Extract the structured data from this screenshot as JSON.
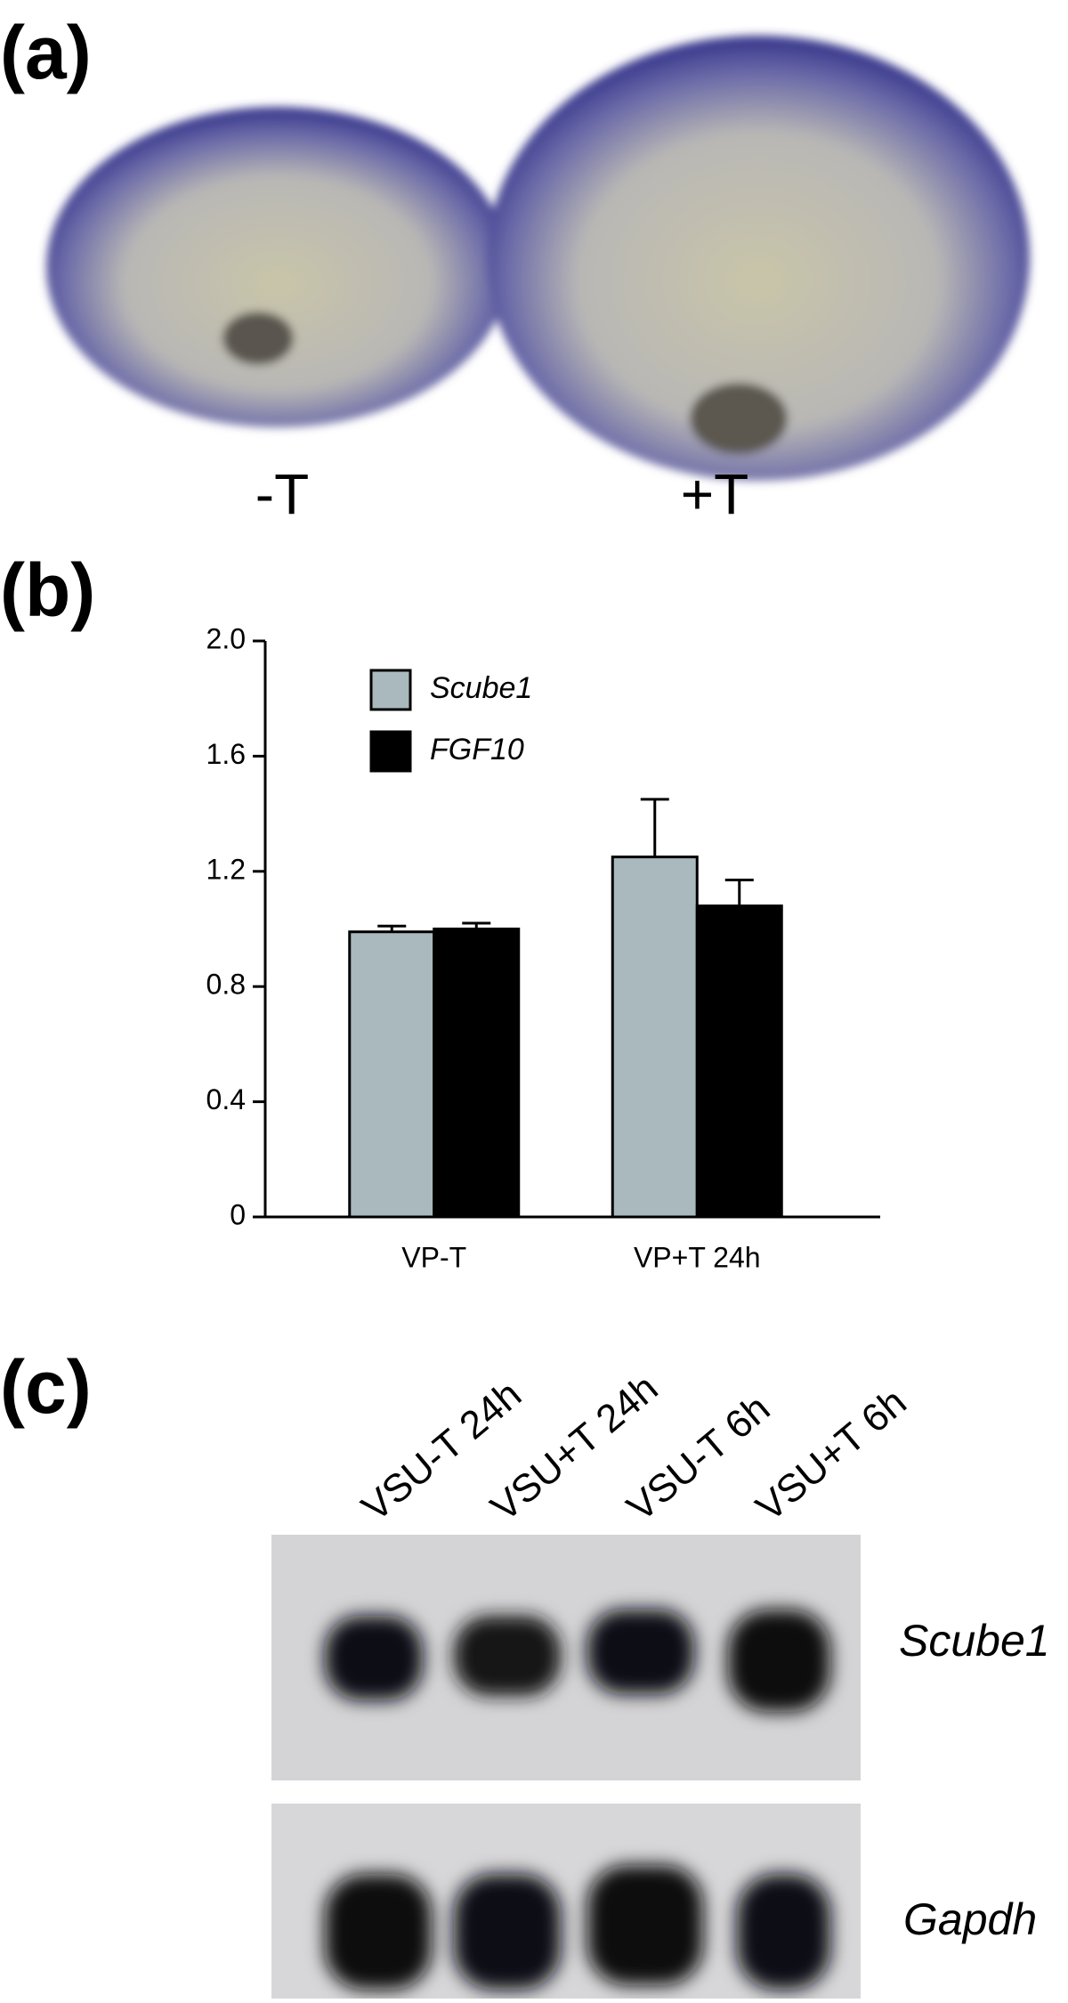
{
  "panel_labels": [
    "(a)",
    "(b)",
    "(c)"
  ],
  "panel_a": {
    "conditions": [
      "-T",
      "+T"
    ]
  },
  "chart_data": {
    "type": "bar",
    "categories": [
      "VP-T",
      "VP+T 24h"
    ],
    "series": [
      {
        "name": "Scube1",
        "color": "#a9b9bd",
        "values": [
          0.99,
          1.25
        ],
        "errors": [
          0.02,
          0.2
        ]
      },
      {
        "name": "FGF10",
        "color": "#000000",
        "values": [
          1.0,
          1.08
        ],
        "errors": [
          0.02,
          0.09
        ]
      }
    ],
    "ylim": [
      0,
      2
    ],
    "yticks": [
      0,
      0.4,
      0.8,
      1.2,
      1.6,
      {
        "value": 2,
        "label": "2.0"
      }
    ],
    "legend": "upper-left"
  },
  "panel_c": {
    "lanes": [
      "VSU-T 24h",
      "VSU+T 24h",
      "VSU-T 6h",
      "VSU+T 6h"
    ],
    "blots": [
      "Scube1",
      "Gapdh"
    ]
  }
}
